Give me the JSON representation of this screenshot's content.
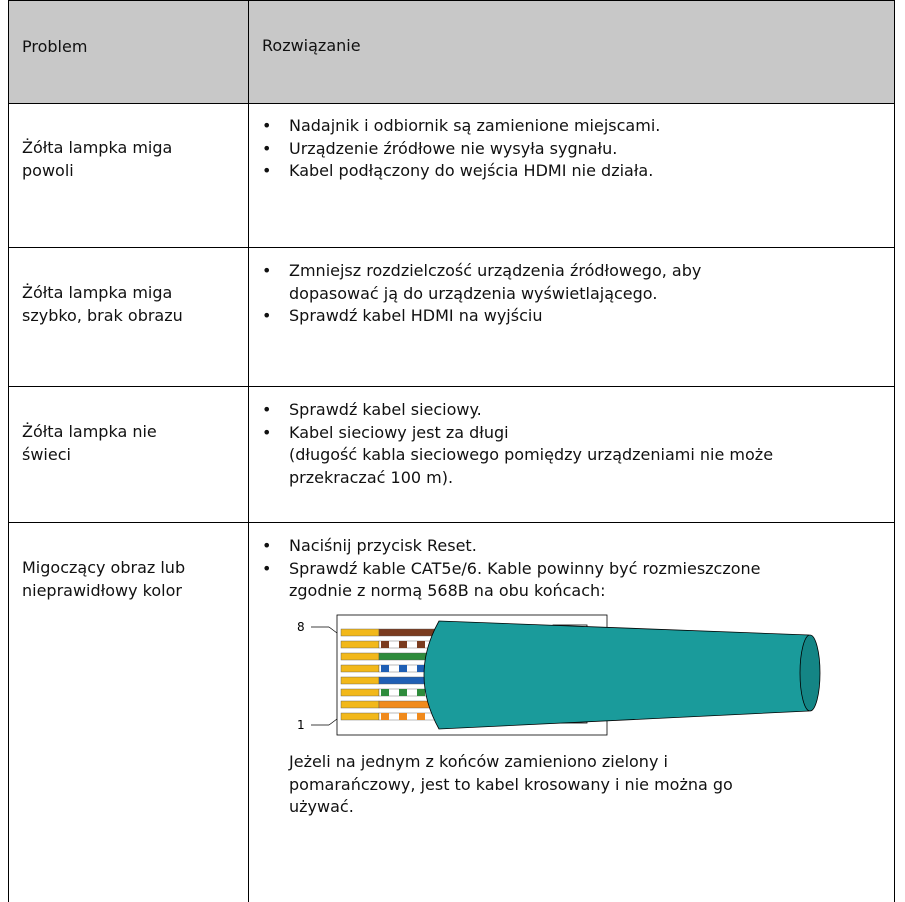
{
  "table": {
    "header": [
      "Problem",
      "Rozwiązanie"
    ],
    "rows": [
      {
        "problem": [
          "Żółta lampka miga",
          "powoli"
        ],
        "bullets": [
          [
            "Nadajnik i odbiornik są zamienione miejscami."
          ],
          [
            "Urządzenie źródłowe nie wysyła sygnału."
          ],
          [
            "Kabel podłączony do wejścia HDMI nie działa."
          ]
        ]
      },
      {
        "problem": [
          "Żółta lampka miga",
          "szybko, brak obrazu"
        ],
        "bullets": [
          [
            "Zmniejsz rozdzielczość urządzenia źródłowego, aby",
            "dopasować ją do urządzenia wyświetlającego."
          ],
          [
            "Sprawdź kabel HDMI na wyjściu"
          ]
        ]
      },
      {
        "problem": [
          "Żółta lampka nie",
          "świeci"
        ],
        "bullets": [
          [
            "Sprawdź kabel sieciowy."
          ],
          [
            "Kabel sieciowy jest za długi",
            "(długość kabla sieciowego pomiędzy urządzeniami nie może",
            "przekraczać 100 m)."
          ]
        ]
      },
      {
        "problem": [
          "Migoczący obraz lub",
          "nieprawidłowy kolor"
        ],
        "bullets": [
          [
            "Naciśnij przycisk Reset."
          ],
          [
            "Sprawdź kable CAT5e/6. Kable powinny być rozmieszczone",
            "zgodnie z normą 568B na obu końcach:"
          ]
        ],
        "figure": {
          "pin_top": "8",
          "pin_bottom": "1"
        },
        "paragraph": [
          "Jeżeli na jednym z końców zamieniono zielony i",
          "pomarańczowy, jest to kabel krosowany i nie można go",
          "używać."
        ]
      }
    ]
  }
}
